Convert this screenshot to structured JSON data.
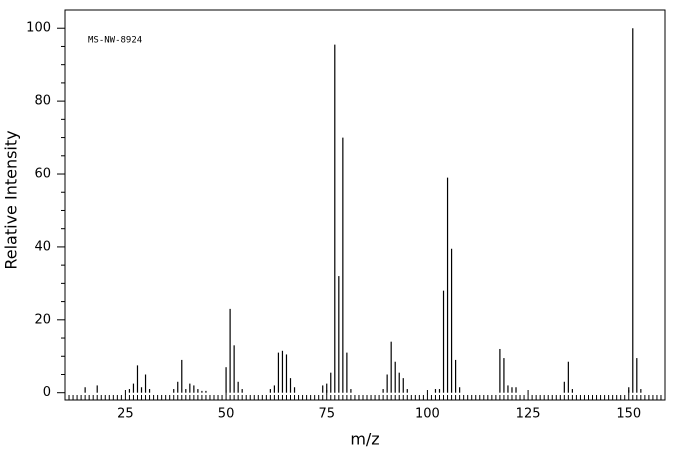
{
  "chart_data": {
    "type": "stem",
    "annotation": "MS-NW-8924",
    "x_label": "m/z",
    "y_label": "Relative Intensity",
    "x": [
      15,
      18,
      26,
      27,
      28,
      29,
      30,
      31,
      37,
      38,
      39,
      40,
      41,
      42,
      43,
      44,
      45,
      50,
      51,
      52,
      53,
      54,
      61,
      62,
      63,
      64,
      65,
      66,
      67,
      74,
      75,
      76,
      77,
      78,
      79,
      80,
      81,
      89,
      90,
      91,
      92,
      93,
      94,
      95,
      102,
      103,
      104,
      105,
      106,
      107,
      108,
      118,
      119,
      120,
      121,
      122,
      134,
      135,
      136,
      150,
      151,
      152,
      153
    ],
    "values": [
      1.5,
      2,
      1,
      2.5,
      7.5,
      1.5,
      5,
      1,
      1,
      3,
      9,
      1,
      2.5,
      2,
      1,
      0.5,
      0.5,
      7,
      23,
      13,
      3,
      1,
      1,
      2,
      11,
      11.5,
      10.5,
      4,
      1.5,
      2,
      2.5,
      5.5,
      95.5,
      32,
      70,
      11,
      1,
      1,
      5,
      14,
      8.5,
      5.5,
      4,
      1,
      1,
      1,
      28,
      59,
      39.5,
      9,
      1.5,
      12,
      9.5,
      2,
      1.5,
      1.5,
      3,
      8.5,
      1,
      1.5,
      100,
      9.5,
      1
    ],
    "color": "#000000",
    "xlim": [
      10,
      159
    ],
    "ylim": [
      -2,
      105
    ],
    "xticks": [
      25,
      50,
      75,
      100,
      125,
      150
    ],
    "yticks": [
      0,
      20,
      40,
      60,
      80,
      100
    ]
  }
}
